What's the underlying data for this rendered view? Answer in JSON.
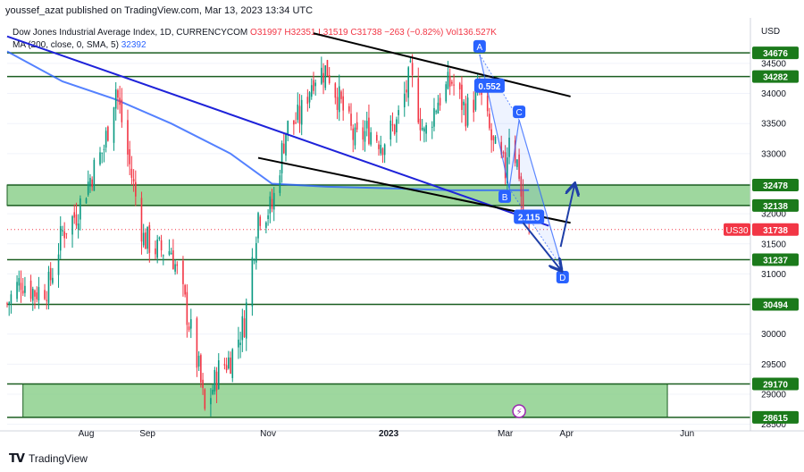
{
  "attribution": "youssef_azat published on TradingView.com, Mar 13, 2023 13:34 UTC",
  "legend": {
    "title": "Dow Jones Industrial Average Index, 1D, CURRENCYCOM",
    "open": "O31997",
    "high": "H32351",
    "low": "L31519",
    "close": "C31738",
    "change": "−263 (−0.82%)",
    "volume": "Vol136.527K",
    "ma_label": "MA (200, close, 0, SMA, 5)",
    "ma_value": "32392"
  },
  "currency": "USD",
  "brand": "TradingView",
  "colors": {
    "up": "#089981",
    "down": "#f23645",
    "ma": "#2962ff",
    "zone_fill": "#7ec97e",
    "level_line": "#1b5e20",
    "channel_blue": "#1e22d9",
    "trend_black": "#000000",
    "harmonic": "#2962ff",
    "price_tag_bg": "#1b7a1b",
    "last_price_bg": "#f23645"
  },
  "chart_data": {
    "type": "candlestick",
    "title": "Dow Jones Industrial Average Index, 1D, CURRENCYCOM",
    "ylim": [
      28450,
      35000
    ],
    "y_ticks": [
      28500,
      29000,
      29500,
      30000,
      30500,
      31000,
      31500,
      32000,
      32500,
      33000,
      33500,
      34000,
      34500
    ],
    "x_ticks": [
      "Aug",
      "Sep",
      "Nov",
      "2023",
      "Mar",
      "Apr",
      "Jun"
    ],
    "last_price": 31738,
    "last_price_symbol": "US30",
    "levels": [
      34676,
      34282,
      32478,
      32138,
      31237,
      30494,
      29170,
      28615
    ],
    "zones": [
      {
        "from": 32138,
        "to": 32478
      },
      {
        "from": 28615,
        "to": 29170
      }
    ],
    "close_path": [
      [
        "2022-06-22",
        30500
      ],
      [
        "2022-06-29",
        30900
      ],
      [
        "2022-07-06",
        30700
      ],
      [
        "2022-07-13",
        30800
      ],
      [
        "2022-07-20",
        31700
      ],
      [
        "2022-07-27",
        32000
      ],
      [
        "2022-08-03",
        32600
      ],
      [
        "2022-08-10",
        33100
      ],
      [
        "2022-08-16",
        34100
      ],
      [
        "2022-08-23",
        32800
      ],
      [
        "2022-08-30",
        31600
      ],
      [
        "2022-09-06",
        31400
      ],
      [
        "2022-09-13",
        31400
      ],
      [
        "2022-09-20",
        30500
      ],
      [
        "2022-09-27",
        29400
      ],
      [
        "2022-09-30",
        28700
      ],
      [
        "2022-10-07",
        29400
      ],
      [
        "2022-10-13",
        29600
      ],
      [
        "2022-10-20",
        30200
      ],
      [
        "2022-10-27",
        32000
      ],
      [
        "2022-11-03",
        32100
      ],
      [
        "2022-11-10",
        33400
      ],
      [
        "2022-11-17",
        33600
      ],
      [
        "2022-11-24",
        34300
      ],
      [
        "2022-12-01",
        34400
      ],
      [
        "2022-12-08",
        33800
      ],
      [
        "2022-12-15",
        33200
      ],
      [
        "2022-12-22",
        33400
      ],
      [
        "2022-12-29",
        33200
      ],
      [
        "2023-01-05",
        33500
      ],
      [
        "2023-01-12",
        34300
      ],
      [
        "2023-01-19",
        33300
      ],
      [
        "2023-01-26",
        33900
      ],
      [
        "2023-02-02",
        34200
      ],
      [
        "2023-02-09",
        33700
      ],
      [
        "2023-02-16",
        34000
      ],
      [
        "2023-02-23",
        33100
      ],
      [
        "2023-03-01",
        32700
      ],
      [
        "2023-03-03",
        33400
      ],
      [
        "2023-03-08",
        32700
      ],
      [
        "2023-03-10",
        31900
      ],
      [
        "2023-03-13",
        31738
      ]
    ],
    "ma_series": [
      [
        "2022-06-22",
        34700
      ],
      [
        "2022-07-20",
        34200
      ],
      [
        "2022-08-16",
        33900
      ],
      [
        "2022-09-13",
        33500
      ],
      [
        "2022-10-13",
        33000
      ],
      [
        "2022-11-03",
        32500
      ],
      [
        "2022-12-01",
        32450
      ],
      [
        "2023-01-05",
        32420
      ],
      [
        "2023-02-02",
        32390
      ],
      [
        "2023-03-13",
        32392
      ]
    ],
    "trendlines": [
      {
        "kind": "channel-upper-blue",
        "from": [
          "2022-06-22",
          34950
        ],
        "to": [
          "2023-03-23",
          31800
        ]
      },
      {
        "kind": "wedge-upper-black",
        "from": [
          "2022-11-24",
          35000
        ],
        "to": [
          "2023-04-03",
          33950
        ]
      },
      {
        "kind": "wedge-lower-black",
        "from": [
          "2022-10-27",
          32930
        ],
        "to": [
          "2023-04-03",
          31850
        ]
      }
    ],
    "harmonic": {
      "points": [
        {
          "label": "A",
          "date": "2023-02-16",
          "price": 34650
        },
        {
          "label": "B",
          "date": "2023-03-03",
          "price": 32420
        },
        {
          "label": "C",
          "date": "2023-03-08",
          "price": 33560
        },
        {
          "label": "D",
          "date": "2023-03-30",
          "price": 31080
        }
      ],
      "ratios": [
        {
          "label": "0.552",
          "date": "2023-02-21",
          "price": 34130
        },
        {
          "label": "2.115",
          "date": "2023-03-13",
          "price": 31950
        }
      ]
    },
    "arrows": [
      {
        "from": [
          "2023-03-10",
          31850
        ],
        "to": [
          "2023-03-29",
          31070
        ]
      },
      {
        "from": [
          "2023-03-29",
          31450
        ],
        "to": [
          "2023-04-05",
          32480
        ]
      }
    ]
  }
}
